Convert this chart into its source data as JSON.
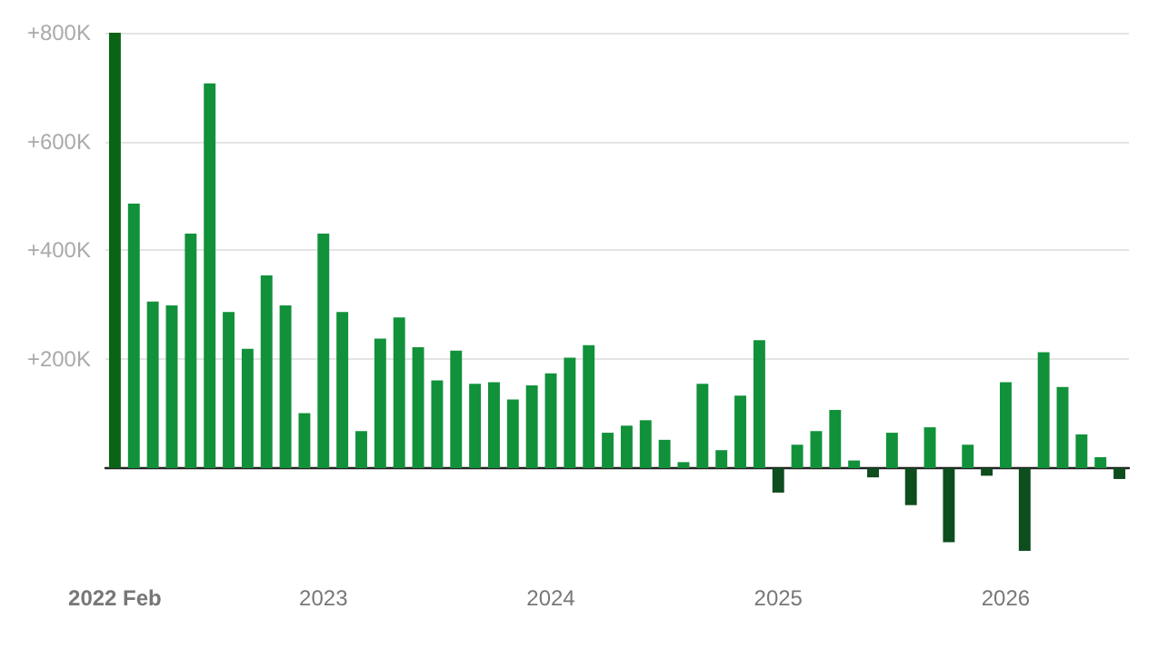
{
  "chart_data": {
    "type": "bar",
    "categories": [
      "2022 Feb",
      null,
      null,
      null,
      null,
      null,
      null,
      null,
      null,
      null,
      null,
      "2023",
      null,
      null,
      null,
      null,
      null,
      null,
      null,
      null,
      null,
      null,
      null,
      "2024",
      null,
      null,
      null,
      null,
      null,
      null,
      null,
      null,
      null,
      null,
      null,
      "2025",
      null,
      null,
      null,
      null,
      null,
      null,
      null,
      null,
      null,
      null,
      null,
      "2026",
      null,
      null,
      null,
      null,
      null,
      null
    ],
    "values": [
      800000,
      486000,
      306000,
      299000,
      431000,
      707000,
      287000,
      219000,
      354000,
      299000,
      101000,
      431000,
      287000,
      68000,
      238000,
      277000,
      222000,
      161000,
      216000,
      155000,
      158000,
      126000,
      152000,
      174000,
      203000,
      226000,
      65000,
      78000,
      88000,
      52000,
      11000,
      155000,
      33000,
      133000,
      235000,
      -45000,
      43000,
      68000,
      107000,
      14000,
      -17000,
      65000,
      -68000,
      75000,
      -136000,
      43000,
      -14000,
      158000,
      -152000,
      213000,
      149000,
      62000,
      20000,
      -20000
    ],
    "colors": [
      "#0a6416",
      "#11913a",
      "#11913a",
      "#11913a",
      "#11913a",
      "#11913a",
      "#11913a",
      "#11913a",
      "#11913a",
      "#11913a",
      "#11913a",
      "#11913a",
      "#11913a",
      "#11913a",
      "#11913a",
      "#11913a",
      "#11913a",
      "#11913a",
      "#11913a",
      "#11913a",
      "#11913a",
      "#11913a",
      "#11913a",
      "#11913a",
      "#11913a",
      "#11913a",
      "#11913a",
      "#11913a",
      "#11913a",
      "#11913a",
      "#11913a",
      "#11913a",
      "#11913a",
      "#11913a",
      "#11913a",
      "#0d4d1e",
      "#11913a",
      "#11913a",
      "#11913a",
      "#11913a",
      "#0d4d1e",
      "#11913a",
      "#0d4d1e",
      "#11913a",
      "#0d4d1e",
      "#11913a",
      "#0d4d1e",
      "#11913a",
      "#0d4d1e",
      "#11913a",
      "#11913a",
      "#11913a",
      "#11913a",
      "#0d4d1e"
    ],
    "yticks": [
      {
        "value": 200000,
        "label": "+200K"
      },
      {
        "value": 400000,
        "label": "+400K"
      },
      {
        "value": 600000,
        "label": "+600K"
      },
      {
        "value": 800000,
        "label": "+800K"
      }
    ],
    "ylim": [
      -152000,
      800000
    ],
    "grid": "y"
  }
}
